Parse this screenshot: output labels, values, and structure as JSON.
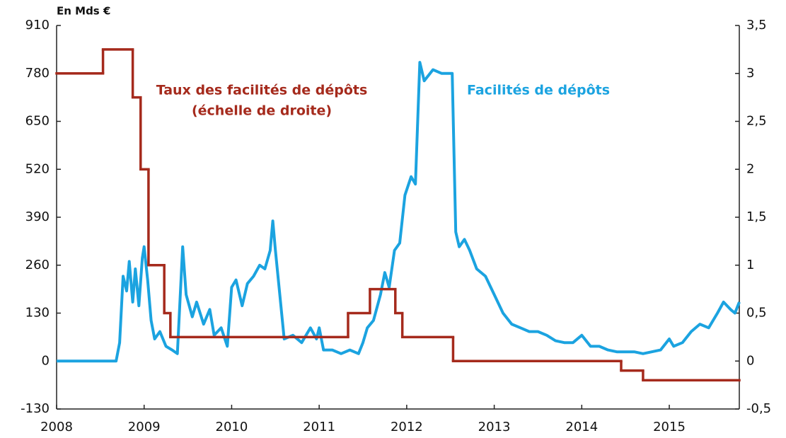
{
  "chart_data": {
    "type": "line",
    "y_axis_label": "En Mds €",
    "xlim": [
      2008,
      2015.8
    ],
    "xticks": [
      2008,
      2009,
      2010,
      2011,
      2012,
      2013,
      2014,
      2015
    ],
    "ylim": [
      -130,
      910
    ],
    "yticks": [
      -130,
      0,
      130,
      260,
      390,
      520,
      650,
      780,
      910
    ],
    "y2lim": [
      -0.5,
      3.5
    ],
    "y2ticks": [
      {
        "value": -0.5,
        "label": "-0,5"
      },
      0,
      {
        "value": 0.5,
        "label": "0,5"
      },
      1,
      {
        "value": 1.5,
        "label": "1,5"
      },
      2,
      {
        "value": 2.5,
        "label": "2,5"
      },
      3,
      {
        "value": 3.5,
        "label": "3,5"
      }
    ],
    "grid": false,
    "series": [
      {
        "name": "Facilités de dépôts",
        "color": "#1ba3e0",
        "axis": "y",
        "x": [
          2008.0,
          2008.68,
          2008.72,
          2008.76,
          2008.8,
          2008.83,
          2008.87,
          2008.9,
          2008.94,
          2008.98,
          2009.0,
          2009.04,
          2009.08,
          2009.12,
          2009.18,
          2009.25,
          2009.32,
          2009.38,
          2009.44,
          2009.48,
          2009.55,
          2009.6,
          2009.68,
          2009.75,
          2009.8,
          2009.88,
          2009.95,
          2010.0,
          2010.05,
          2010.12,
          2010.18,
          2010.25,
          2010.32,
          2010.38,
          2010.44,
          2010.47,
          2010.5,
          2010.55,
          2010.6,
          2010.7,
          2010.8,
          2010.9,
          2010.97,
          2011.0,
          2011.05,
          2011.15,
          2011.25,
          2011.35,
          2011.45,
          2011.5,
          2011.55,
          2011.62,
          2011.7,
          2011.75,
          2011.8,
          2011.86,
          2011.92,
          2011.98,
          2012.05,
          2012.1,
          2012.15,
          2012.2,
          2012.3,
          2012.4,
          2012.48,
          2012.52,
          2012.56,
          2012.6,
          2012.66,
          2012.72,
          2012.8,
          2012.9,
          2013.0,
          2013.1,
          2013.2,
          2013.3,
          2013.4,
          2013.5,
          2013.6,
          2013.7,
          2013.8,
          2013.9,
          2014.0,
          2014.1,
          2014.2,
          2014.3,
          2014.4,
          2014.5,
          2014.6,
          2014.7,
          2014.8,
          2014.9,
          2015.0,
          2015.05,
          2015.15,
          2015.25,
          2015.35,
          2015.45,
          2015.55,
          2015.62,
          2015.7,
          2015.75,
          2015.8
        ],
        "values": [
          0,
          0,
          50,
          230,
          190,
          270,
          160,
          250,
          150,
          280,
          310,
          220,
          110,
          60,
          80,
          40,
          30,
          20,
          310,
          180,
          120,
          160,
          100,
          140,
          70,
          90,
          40,
          200,
          220,
          150,
          210,
          230,
          260,
          250,
          300,
          380,
          300,
          180,
          60,
          70,
          50,
          90,
          60,
          90,
          30,
          30,
          20,
          30,
          20,
          50,
          90,
          110,
          180,
          240,
          200,
          300,
          320,
          450,
          500,
          480,
          810,
          760,
          790,
          780,
          780,
          780,
          350,
          310,
          330,
          300,
          250,
          230,
          180,
          130,
          100,
          90,
          80,
          80,
          70,
          55,
          50,
          50,
          70,
          40,
          40,
          30,
          25,
          25,
          25,
          20,
          25,
          30,
          60,
          40,
          50,
          80,
          100,
          90,
          130,
          160,
          140,
          130,
          160
        ]
      },
      {
        "name": "Taux des facilités de dépôts",
        "color": "#a52a1c",
        "axis": "y2",
        "step": true,
        "x": [
          2008.0,
          2008.53,
          2008.87,
          2008.96,
          2009.05,
          2009.23,
          2009.3,
          2011.33,
          2011.58,
          2011.87,
          2011.95,
          2012.53,
          2014.45,
          2014.7,
          2015.8
        ],
        "values": [
          3.0,
          3.25,
          2.75,
          2.0,
          1.0,
          0.5,
          0.25,
          0.5,
          0.75,
          0.5,
          0.25,
          0,
          -0.1,
          -0.2,
          -0.2
        ]
      }
    ],
    "annotations": [
      "(échelle de droite)"
    ]
  }
}
